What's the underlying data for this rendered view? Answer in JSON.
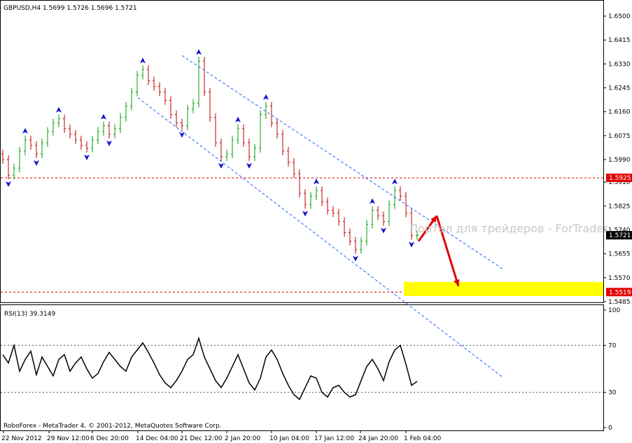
{
  "header": {
    "text": "GBPUSD,H4  1.5699 1.5726 1.5696 1.5721"
  },
  "footer": {
    "copyright": "RoboForex - MetaTrader 4, © 2001-2012, MetaQuotes Software Corp."
  },
  "watermark": "Портал для трейдеров - ForTrader",
  "colors": {
    "bull": "#00a000",
    "bear": "#c00000",
    "fractal": "#1010d0",
    "channel": "#1e64ff",
    "level": "#e00000",
    "arrow": "#e00000",
    "target_zone": "#ffff00",
    "rsi_line": "#000000",
    "grid": "#000000"
  },
  "chart_data": [
    {
      "type": "candlestick",
      "symbol": "GBPUSD",
      "timeframe": "H4",
      "ohlc_last": {
        "open": 1.5699,
        "high": 1.5726,
        "low": 1.5696,
        "close": 1.5721
      },
      "y_ticks": [
        "1.6500",
        "1.6415",
        "1.6330",
        "1.6245",
        "1.6160",
        "1.6075",
        "1.5990",
        "1.5910",
        "1.5825",
        "1.5740",
        "1.5655",
        "1.5570",
        "1.5485"
      ],
      "ylim": [
        1.5485,
        1.65
      ],
      "x_ticks": [
        "22 Nov 2012",
        "29 Nov 12:00",
        "6 Dec 20:00",
        "14 Dec 04:00",
        "21 Dec 12:00",
        "2 Jan 20:00",
        "10 Jan 04:00",
        "17 Jan 12:00",
        "24 Jan 20:00",
        "1 Feb 04:00"
      ],
      "close_series": [
        1.599,
        1.5935,
        1.596,
        1.602,
        1.606,
        1.604,
        1.601,
        1.605,
        1.609,
        1.612,
        1.6135,
        1.61,
        1.608,
        1.606,
        1.604,
        1.603,
        1.606,
        1.609,
        1.611,
        1.608,
        1.61,
        1.614,
        1.618,
        1.623,
        1.629,
        1.631,
        1.627,
        1.625,
        1.623,
        1.62,
        1.615,
        1.612,
        1.611,
        1.617,
        1.619,
        1.634,
        1.623,
        1.614,
        1.605,
        1.6,
        1.601,
        1.606,
        1.61,
        1.605,
        1.6,
        1.603,
        1.615,
        1.618,
        1.612,
        1.608,
        1.602,
        1.598,
        1.594,
        1.587,
        1.583,
        1.586,
        1.588,
        1.584,
        1.581,
        1.58,
        1.577,
        1.573,
        1.57,
        1.567,
        1.57,
        1.576,
        1.581,
        1.579,
        1.577,
        1.583,
        1.588,
        1.586,
        1.58,
        1.572,
        1.5721
      ],
      "channel": [
        {
          "name": "upper",
          "from": [
            "21 Dec 12:00",
            1.636
          ],
          "to": [
            "1 Feb 04:00",
            1.583
          ]
        },
        {
          "name": "lower",
          "from": [
            "14 Dec 04:00",
            1.621
          ],
          "to": [
            "1 Feb 04:00",
            1.548
          ]
        }
      ],
      "levels": [
        {
          "label": "1.5925",
          "value": 1.5925
        },
        {
          "label": "1.5519",
          "value": 1.5519
        }
      ],
      "price_label": "1.5721",
      "target_zone": [
        1.5505,
        1.5555
      ],
      "forecast_path": [
        1.57,
        1.579,
        1.554
      ]
    },
    {
      "type": "line",
      "indicator": "RSI",
      "label": "RSI(13) 39.3149",
      "y_ticks": [
        "100",
        "70",
        "30",
        "0"
      ],
      "ylim": [
        0,
        100
      ],
      "levels": [
        70,
        30
      ],
      "values": [
        62,
        55,
        70,
        48,
        58,
        65,
        45,
        60,
        52,
        44,
        58,
        62,
        48,
        55,
        60,
        50,
        42,
        46,
        56,
        64,
        58,
        52,
        48,
        60,
        66,
        72,
        64,
        55,
        45,
        38,
        34,
        40,
        48,
        58,
        62,
        76,
        60,
        50,
        40,
        34,
        42,
        52,
        62,
        50,
        38,
        32,
        42,
        60,
        66,
        58,
        46,
        36,
        28,
        24,
        34,
        44,
        42,
        30,
        26,
        34,
        36,
        30,
        26,
        28,
        40,
        52,
        58,
        50,
        40,
        56,
        66,
        70,
        54,
        36,
        39.3149
      ]
    }
  ]
}
